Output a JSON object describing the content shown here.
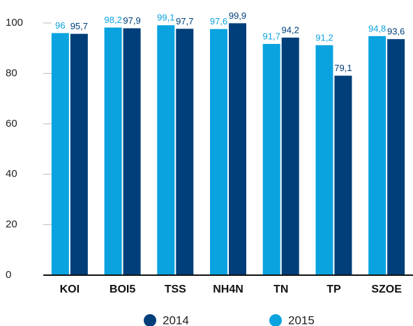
{
  "chart_data": {
    "type": "bar",
    "categories": [
      "KOI",
      "BOI5",
      "TSS",
      "NH4N",
      "TN",
      "TP",
      "SZOE"
    ],
    "series": [
      {
        "name": "2014",
        "color": "#003f7a",
        "values": [
          95.7,
          97.9,
          97.7,
          99.9,
          94.2,
          79.1,
          93.6
        ],
        "value_labels": [
          "95,7",
          "97,9",
          "97,7",
          "99,9",
          "94,2",
          "79,1",
          "93,6"
        ]
      },
      {
        "name": "2015",
        "color": "#0aa3e0",
        "values": [
          96,
          98.2,
          99.1,
          97.6,
          91.7,
          91.2,
          94.8
        ],
        "value_labels": [
          "96",
          "98,2",
          "99,1",
          "97,6",
          "91,7",
          "91,2",
          "94,8"
        ]
      }
    ],
    "ylim": [
      0,
      100
    ],
    "yticks": [
      0,
      20,
      40,
      60,
      80,
      100
    ],
    "grid": true
  }
}
